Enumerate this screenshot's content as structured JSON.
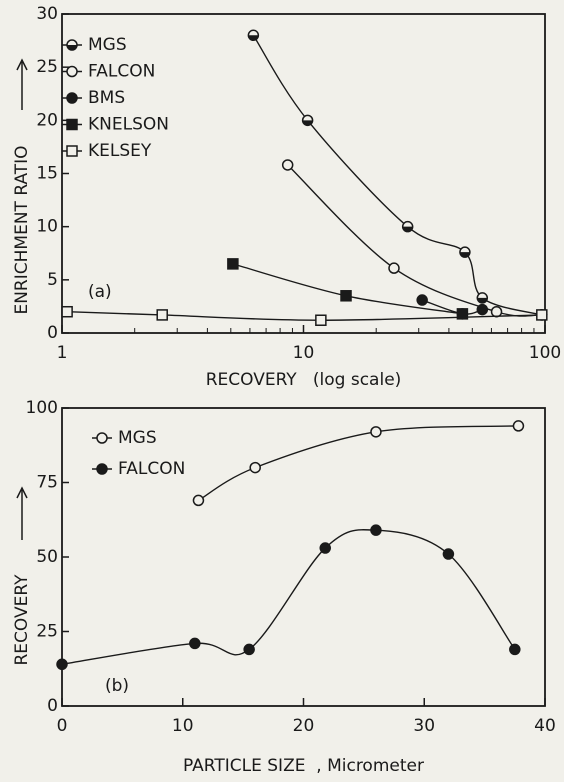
{
  "chart_data": [
    {
      "type": "scatter",
      "xlabel": "RECOVERY   (log scale)",
      "ylabel": "ENRICHMENT RATIO",
      "annotation": "(a)",
      "xscale": "log",
      "xlim": [
        1,
        100
      ],
      "xticks": [
        1,
        10,
        100
      ],
      "ylim": [
        0,
        30
      ],
      "yticks": [
        0,
        5,
        10,
        15,
        20,
        25,
        30
      ],
      "legend": "upper left",
      "series": [
        {
          "name": "MGS",
          "color": "#1a1a1a",
          "marker": "half-circle",
          "x": [
            6.2,
            10.4,
            27,
            46.6,
            55,
            97
          ],
          "values": [
            28,
            20,
            10,
            7.6,
            3.3,
            1.7
          ]
        },
        {
          "name": "FALCON",
          "color": "#1a1a1a",
          "marker": "open-circle",
          "x": [
            8.6,
            23.7,
            63,
            97
          ],
          "values": [
            15.8,
            6.1,
            2,
            1.7
          ]
        },
        {
          "name": "BMS",
          "color": "#1a1a1a",
          "marker": "filled-circle",
          "x": [
            31,
            45.5,
            55
          ],
          "values": [
            3.1,
            1.8,
            2.2
          ]
        },
        {
          "name": "KNELSON",
          "color": "#1a1a1a",
          "marker": "filled-square",
          "x": [
            5.1,
            15,
            45.5
          ],
          "values": [
            6.5,
            3.5,
            1.8
          ]
        },
        {
          "name": "KELSEY",
          "color": "#1a1a1a",
          "marker": "open-square",
          "x": [
            1.05,
            2.6,
            11.8,
            97
          ],
          "values": [
            2,
            1.7,
            1.2,
            1.7
          ]
        }
      ]
    },
    {
      "type": "scatter",
      "xlabel": "PARTICLE SIZE  , Micrometer",
      "ylabel": "RECOVERY",
      "annotation": "(b)",
      "xlim": [
        0,
        40
      ],
      "xticks": [
        0,
        10,
        20,
        30,
        40
      ],
      "ylim": [
        0,
        100
      ],
      "yticks": [
        0,
        25,
        50,
        75,
        100
      ],
      "legend": "upper left",
      "series": [
        {
          "name": "MGS",
          "color": "#1a1a1a",
          "marker": "open-circle",
          "x": [
            11.3,
            16,
            26,
            37.8
          ],
          "values": [
            69,
            80,
            92,
            94
          ]
        },
        {
          "name": "FALCON",
          "color": "#1a1a1a",
          "marker": "filled-circle",
          "x": [
            0,
            11,
            15.5,
            21.8,
            26,
            32,
            37.5
          ],
          "values": [
            14,
            21,
            19,
            53,
            59,
            51,
            19
          ]
        }
      ]
    }
  ]
}
